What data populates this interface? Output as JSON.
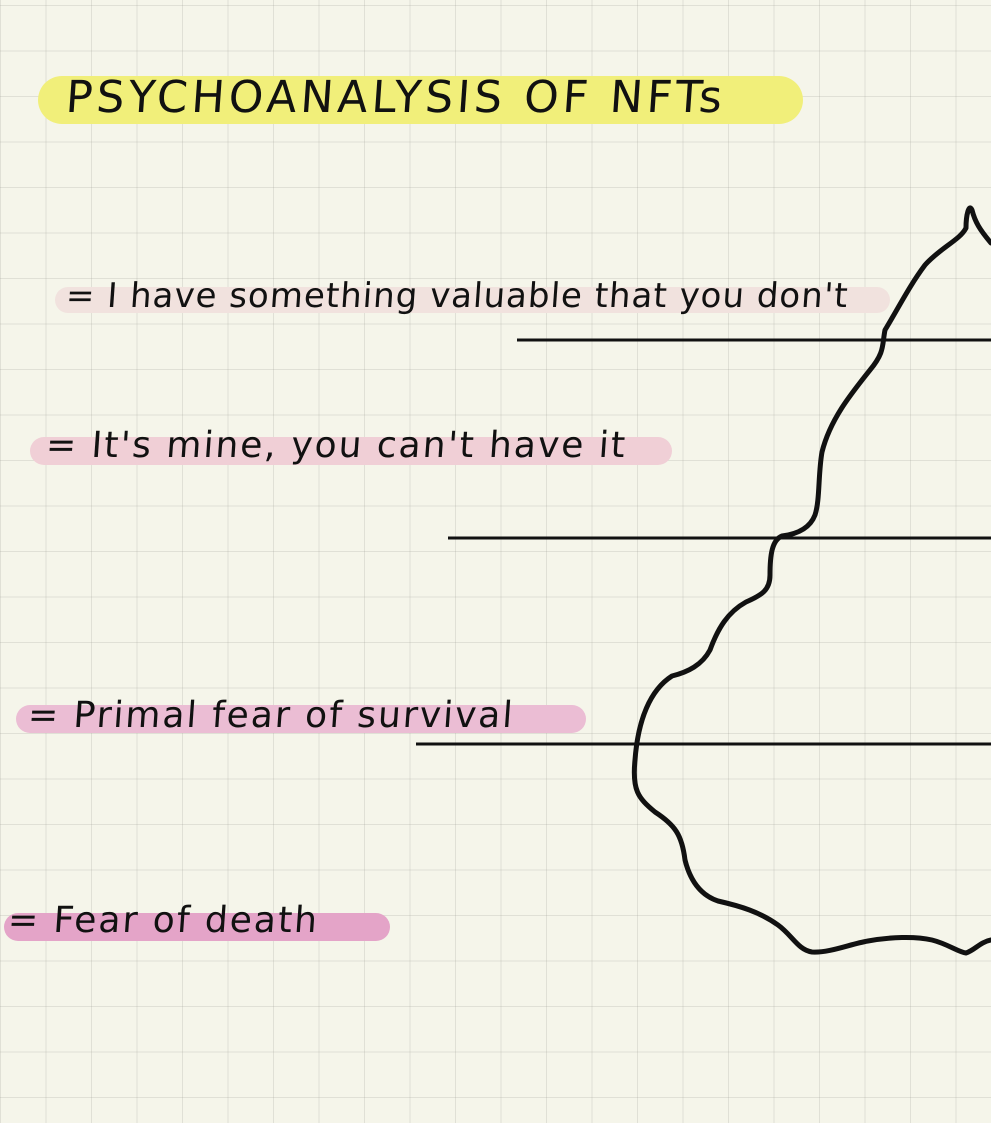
{
  "title": "PSYCHOANALYSIS OF NFTs",
  "layers": [
    {
      "text": "= I have something valuable that you don't"
    },
    {
      "text": "= It's mine, you can't have it"
    },
    {
      "text": "= Primal fear of survival"
    },
    {
      "text": "= Fear of death"
    }
  ],
  "colors": {
    "paper": "#f5f5ea",
    "title_highlight": "#f1ef7a",
    "layer_highlights": [
      "#f1e2de",
      "#f0cfd6",
      "#ebbdd4",
      "#e4a4c8"
    ],
    "ink": "#111111"
  }
}
